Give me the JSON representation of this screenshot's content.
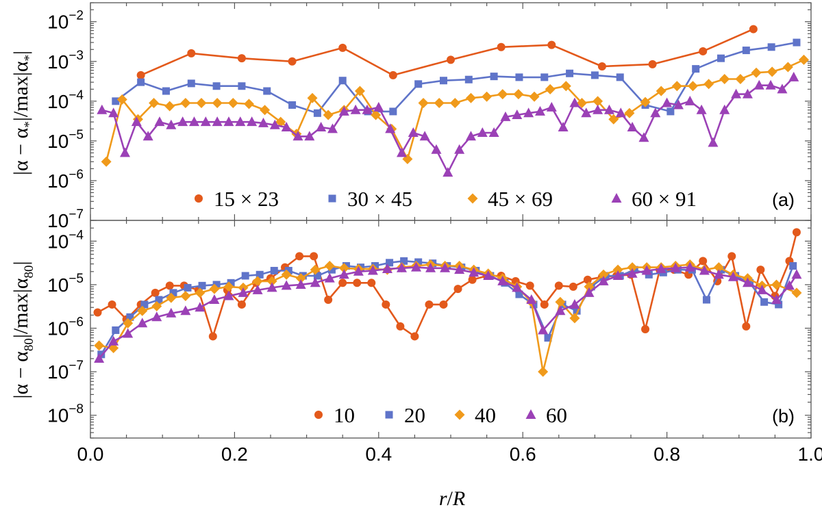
{
  "chart_data": [
    {
      "type": "line",
      "panel_tag": "(a)",
      "ylabel_parts": [
        "|α − α",
        "*",
        "|/max|α",
        "*",
        "|"
      ],
      "yscale": "log",
      "ylim": [
        1e-07,
        0.03
      ],
      "yticks": [
        {
          "base": "10",
          "exp": "−2",
          "value": 0.01
        },
        {
          "base": "10",
          "exp": "−3",
          "value": 0.001
        },
        {
          "base": "10",
          "exp": "−4",
          "value": 0.0001
        },
        {
          "base": "10",
          "exp": "−5",
          "value": 1e-05
        },
        {
          "base": "10",
          "exp": "−6",
          "value": 1e-06
        },
        {
          "base": "10",
          "exp": "−7",
          "value": 1e-07
        }
      ],
      "xlim": [
        0,
        1
      ],
      "legend_placement": "bottom",
      "series": [
        {
          "name": "15 × 23",
          "color": "#e3591b",
          "marker": "circle",
          "x": [
            0.07,
            0.14,
            0.21,
            0.28,
            0.35,
            0.42,
            0.5,
            0.57,
            0.64,
            0.71,
            0.78,
            0.85,
            0.92
          ],
          "y": [
            0.00045,
            0.0016,
            0.0012,
            0.001,
            0.0022,
            0.00045,
            0.0011,
            0.0023,
            0.0026,
            0.00075,
            0.00085,
            0.0018,
            0.0065
          ]
        },
        {
          "name": "30 × 45",
          "color": "#5f74c9",
          "marker": "square",
          "x": [
            0.035,
            0.07,
            0.105,
            0.14,
            0.175,
            0.21,
            0.245,
            0.28,
            0.315,
            0.35,
            0.385,
            0.42,
            0.455,
            0.49,
            0.525,
            0.56,
            0.595,
            0.63,
            0.665,
            0.7,
            0.735,
            0.77,
            0.805,
            0.84,
            0.875,
            0.91,
            0.945,
            0.98
          ],
          "y": [
            0.0001,
            0.0003,
            0.00018,
            0.00028,
            0.00024,
            0.00024,
            0.00018,
            8e-05,
            5e-05,
            0.00033,
            5.5e-05,
            5.5e-05,
            0.00027,
            0.00033,
            0.00035,
            0.00042,
            0.0004,
            0.0004,
            0.0005,
            0.00045,
            0.0004,
            8e-05,
            5.5e-05,
            0.00065,
            0.0012,
            0.0019,
            0.0023,
            0.003
          ]
        },
        {
          "name": "45 × 69",
          "color": "#f09a1b",
          "marker": "diamond",
          "x": [
            0.022,
            0.044,
            0.066,
            0.088,
            0.11,
            0.132,
            0.154,
            0.176,
            0.198,
            0.22,
            0.242,
            0.264,
            0.286,
            0.308,
            0.33,
            0.352,
            0.374,
            0.396,
            0.418,
            0.44,
            0.462,
            0.484,
            0.506,
            0.528,
            0.55,
            0.572,
            0.594,
            0.616,
            0.638,
            0.66,
            0.682,
            0.704,
            0.726,
            0.748,
            0.77,
            0.792,
            0.814,
            0.836,
            0.858,
            0.88,
            0.902,
            0.924,
            0.946,
            0.968,
            0.99
          ],
          "y": [
            3e-06,
            0.00011,
            3.5e-05,
            9e-05,
            7.5e-05,
            9e-05,
            9e-05,
            9e-05,
            9e-05,
            8.5e-05,
            6e-05,
            3e-05,
            1.5e-05,
            0.00012,
            4.5e-05,
            6e-05,
            0.00018,
            4.5e-05,
            2e-05,
            3.5e-06,
            9e-05,
            9e-05,
            9e-05,
            0.00012,
            0.00013,
            0.00015,
            0.00015,
            0.00013,
            0.0002,
            0.00024,
            9e-05,
            0.0001,
            3.5e-05,
            5e-05,
            9.5e-05,
            0.00018,
            0.00024,
            0.00024,
            0.00027,
            0.00036,
            0.00036,
            0.00052,
            0.00055,
            0.00072,
            0.0011
          ]
        },
        {
          "name": "60 × 91",
          "color": "#9b41b6",
          "marker": "triangle",
          "x": [
            0.016,
            0.032,
            0.048,
            0.064,
            0.08,
            0.096,
            0.112,
            0.128,
            0.144,
            0.16,
            0.176,
            0.192,
            0.208,
            0.224,
            0.24,
            0.256,
            0.272,
            0.288,
            0.304,
            0.32,
            0.336,
            0.352,
            0.368,
            0.384,
            0.4,
            0.416,
            0.432,
            0.448,
            0.464,
            0.48,
            0.496,
            0.512,
            0.528,
            0.544,
            0.56,
            0.576,
            0.592,
            0.608,
            0.624,
            0.64,
            0.656,
            0.672,
            0.688,
            0.704,
            0.72,
            0.736,
            0.752,
            0.768,
            0.784,
            0.8,
            0.816,
            0.832,
            0.848,
            0.864,
            0.88,
            0.896,
            0.912,
            0.928,
            0.944,
            0.96,
            0.976
          ],
          "y": [
            6e-05,
            5e-05,
            5e-06,
            3e-05,
            1.3e-05,
            3e-05,
            2.5e-05,
            3e-05,
            3e-05,
            3e-05,
            3e-05,
            3e-05,
            3e-05,
            3e-05,
            2.8e-05,
            2.5e-05,
            2.2e-05,
            1.3e-05,
            1.3e-05,
            2.2e-05,
            2e-05,
            5.5e-05,
            6e-05,
            6e-05,
            7e-05,
            2e-05,
            5e-06,
            1.6e-05,
            1.3e-05,
            6e-06,
            1.6e-06,
            6e-06,
            1.3e-05,
            1.6e-05,
            1.6e-05,
            4e-05,
            4.5e-05,
            5e-05,
            5.5e-05,
            7e-05,
            2.2e-05,
            9e-05,
            5e-05,
            6e-05,
            6e-05,
            5e-05,
            2.2e-05,
            1.2e-05,
            5e-05,
            9e-05,
            8e-05,
            0.0001,
            6e-05,
            9e-06,
            6e-05,
            0.00015,
            0.00015,
            0.00025,
            0.00025,
            0.0002,
            0.0004
          ]
        }
      ]
    },
    {
      "type": "line",
      "panel_tag": "(b)",
      "ylabel_parts": [
        "|α − α",
        "80",
        "|/max|α",
        "80",
        "|"
      ],
      "yscale": "log",
      "ylim": [
        3e-09,
        0.0003
      ],
      "yticks": [
        {
          "base": "10",
          "exp": "−4",
          "value": 0.0001
        },
        {
          "base": "10",
          "exp": "−5",
          "value": 1e-05
        },
        {
          "base": "10",
          "exp": "−6",
          "value": 1e-06
        },
        {
          "base": "10",
          "exp": "−7",
          "value": 1e-07
        },
        {
          "base": "10",
          "exp": "−8",
          "value": 1e-08
        }
      ],
      "xlim": [
        0,
        1
      ],
      "xlabel_parts": [
        "r",
        "/",
        "R"
      ],
      "xticks": [
        "0.0",
        "0.2",
        "0.4",
        "0.6",
        "0.8",
        "1.0"
      ],
      "legend_placement": "bottom",
      "series": [
        {
          "name": "10",
          "color": "#e3591b",
          "marker": "circle",
          "x": [
            0.01,
            0.03,
            0.05,
            0.07,
            0.09,
            0.11,
            0.13,
            0.15,
            0.17,
            0.19,
            0.21,
            0.23,
            0.25,
            0.27,
            0.29,
            0.31,
            0.33,
            0.35,
            0.37,
            0.39,
            0.41,
            0.43,
            0.45,
            0.47,
            0.49,
            0.51,
            0.53,
            0.55,
            0.57,
            0.59,
            0.61,
            0.63,
            0.65,
            0.67,
            0.69,
            0.71,
            0.73,
            0.75,
            0.77,
            0.79,
            0.81,
            0.83,
            0.85,
            0.87,
            0.89,
            0.91,
            0.93,
            0.95,
            0.97,
            0.98
          ],
          "y": [
            2.3e-06,
            3.5e-06,
            1.6e-06,
            3.5e-06,
            6.5e-06,
            9.5e-06,
            9.5e-06,
            7.5e-06,
            6.5e-07,
            7.5e-06,
            3.5e-06,
            1.1e-05,
            1.4e-05,
            2.5e-05,
            4.5e-05,
            4.5e-05,
            4.5e-06,
            1.1e-05,
            1.1e-05,
            1.1e-05,
            3.5e-06,
            1.1e-06,
            6.5e-07,
            3.5e-06,
            3.5e-06,
            8e-06,
            1.3e-05,
            1.6e-05,
            1.6e-05,
            1.2e-05,
            9.5e-06,
            3.5e-06,
            9.5e-06,
            9e-06,
            1.3e-05,
            1.5e-05,
            1.6e-05,
            1.7e-05,
            9.5e-07,
            2.2e-05,
            2.2e-05,
            1.7e-05,
            3.5e-05,
            1.2e-05,
            4.5e-05,
            1.1e-06,
            2.2e-05,
            5.5e-06,
            3.5e-05,
            0.00016
          ]
        },
        {
          "name": "20",
          "color": "#5f74c9",
          "marker": "square",
          "x": [
            0.015,
            0.035,
            0.055,
            0.075,
            0.095,
            0.115,
            0.135,
            0.155,
            0.175,
            0.195,
            0.215,
            0.235,
            0.255,
            0.275,
            0.295,
            0.315,
            0.335,
            0.355,
            0.375,
            0.395,
            0.415,
            0.435,
            0.455,
            0.475,
            0.495,
            0.515,
            0.535,
            0.555,
            0.575,
            0.595,
            0.615,
            0.635,
            0.655,
            0.675,
            0.695,
            0.715,
            0.735,
            0.755,
            0.775,
            0.795,
            0.815,
            0.835,
            0.855,
            0.875,
            0.895,
            0.915,
            0.935,
            0.955,
            0.975
          ],
          "y": [
            2.5e-07,
            9e-07,
            1.8e-06,
            3.5e-06,
            4.5e-06,
            6.5e-06,
            8.5e-06,
            9.5e-06,
            1e-05,
            1.1e-05,
            1.6e-05,
            1.7e-05,
            2.1e-05,
            2.1e-05,
            1.6e-05,
            1.6e-05,
            2.2e-05,
            2.7e-05,
            2.5e-05,
            2.7e-05,
            3.2e-05,
            3.5e-05,
            3.3e-05,
            3.1e-05,
            2.7e-05,
            2.5e-05,
            2.1e-05,
            1.6e-05,
            1.1e-05,
            6e-06,
            3.5e-06,
            6e-07,
            3.5e-06,
            2.5e-06,
            9e-06,
            1.6e-05,
            1.6e-05,
            2.2e-05,
            1.7e-05,
            1.9e-05,
            2.2e-05,
            2.2e-05,
            4.5e-06,
            2.2e-05,
            1.6e-05,
            1.1e-05,
            4e-06,
            3.5e-06,
            2.7e-05
          ]
        },
        {
          "name": "40",
          "color": "#f09a1b",
          "marker": "diamond",
          "x": [
            0.012,
            0.032,
            0.052,
            0.072,
            0.092,
            0.112,
            0.132,
            0.152,
            0.172,
            0.192,
            0.212,
            0.232,
            0.252,
            0.272,
            0.292,
            0.312,
            0.332,
            0.352,
            0.372,
            0.392,
            0.412,
            0.432,
            0.452,
            0.472,
            0.492,
            0.512,
            0.532,
            0.552,
            0.572,
            0.592,
            0.612,
            0.628,
            0.652,
            0.672,
            0.692,
            0.712,
            0.732,
            0.752,
            0.772,
            0.792,
            0.812,
            0.832,
            0.852,
            0.872,
            0.892,
            0.912,
            0.932,
            0.952,
            0.98
          ],
          "y": [
            4e-07,
            3.5e-07,
            1.3e-06,
            2.5e-06,
            3.2e-06,
            5e-06,
            5.5e-06,
            6.5e-06,
            8e-06,
            9e-06,
            8.5e-06,
            1.2e-05,
            1.2e-05,
            1.7e-05,
            1.4e-05,
            2.2e-05,
            2.7e-05,
            2.4e-05,
            2.3e-05,
            2.3e-05,
            2.2e-05,
            2.5e-05,
            2.7e-05,
            2.9e-05,
            2.7e-05,
            2.7e-05,
            2.2e-05,
            1.8e-05,
            1.4e-05,
            9e-06,
            4e-06,
            1e-07,
            4e-06,
            1.7e-06,
            9e-06,
            1.7e-05,
            2.2e-05,
            2.5e-05,
            2.5e-05,
            2.5e-05,
            2.7e-05,
            2.9e-05,
            2.2e-05,
            2.5e-05,
            1.7e-05,
            1.4e-05,
            9.5e-06,
            1e-05,
            6.5e-06
          ]
        },
        {
          "name": "60",
          "color": "#9b41b6",
          "marker": "triangle",
          "x": [
            0.012,
            0.032,
            0.052,
            0.072,
            0.092,
            0.112,
            0.132,
            0.152,
            0.172,
            0.192,
            0.212,
            0.232,
            0.252,
            0.272,
            0.292,
            0.312,
            0.332,
            0.352,
            0.372,
            0.392,
            0.412,
            0.432,
            0.452,
            0.472,
            0.492,
            0.512,
            0.532,
            0.552,
            0.572,
            0.592,
            0.612,
            0.628,
            0.652,
            0.672,
            0.692,
            0.712,
            0.732,
            0.752,
            0.772,
            0.792,
            0.812,
            0.832,
            0.852,
            0.872,
            0.892,
            0.912,
            0.932,
            0.952,
            0.97,
            0.98
          ],
          "y": [
            2e-07,
            5e-07,
            7.5e-07,
            1.3e-06,
            1.8e-06,
            2.2e-06,
            2.5e-06,
            3e-06,
            4.5e-06,
            5.5e-06,
            6.5e-06,
            7.5e-06,
            8.5e-06,
            9.5e-06,
            1e-05,
            1.1e-05,
            1.4e-05,
            1.7e-05,
            2e-05,
            2.1e-05,
            2.3e-05,
            2.4e-05,
            2.5e-05,
            2.4e-05,
            2.4e-05,
            2.2e-05,
            1.9e-05,
            1.6e-05,
            1.2e-05,
            8.5e-06,
            4.5e-06,
            9e-07,
            2.5e-06,
            3.5e-06,
            6.5e-06,
            1.2e-05,
            1.6e-05,
            1.8e-05,
            2.1e-05,
            2.3e-05,
            2.4e-05,
            2.5e-05,
            2.1e-05,
            1.7e-05,
            1.5e-05,
            1.1e-05,
            7.5e-06,
            4.5e-06,
            9.5e-06,
            1.7e-05
          ]
        }
      ]
    }
  ]
}
